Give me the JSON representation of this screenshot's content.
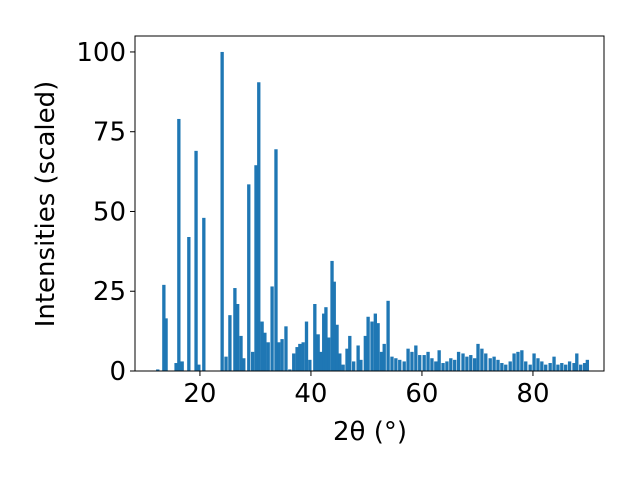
{
  "chart_data": {
    "type": "bar",
    "xlabel": "2θ (°)",
    "ylabel": "Intensities (scaled)",
    "color": "#1f77b4",
    "bar_width": 0.6,
    "x": [
      12.4,
      13.5,
      13.9,
      15.7,
      16.2,
      16.8,
      18.0,
      19.3,
      19.8,
      20.7,
      24.0,
      24.7,
      25.4,
      26.3,
      26.8,
      27.4,
      27.9,
      28.8,
      29.5,
      30.1,
      30.6,
      31.2,
      31.7,
      32.3,
      33.0,
      33.7,
      34.2,
      34.8,
      35.5,
      36.2,
      36.9,
      37.5,
      38.0,
      38.6,
      39.2,
      39.8,
      40.7,
      41.3,
      41.8,
      42.3,
      42.7,
      43.2,
      43.8,
      44.2,
      44.7,
      45.2,
      45.8,
      46.5,
      47.0,
      47.7,
      48.5,
      49.0,
      49.8,
      50.3,
      51.0,
      51.6,
      52.1,
      52.7,
      53.2,
      53.9,
      54.6,
      55.3,
      56.0,
      56.8,
      57.5,
      58.2,
      58.9,
      59.6,
      60.4,
      61.1,
      61.8,
      62.5,
      63.1,
      63.8,
      64.5,
      65.2,
      65.9,
      66.6,
      67.4,
      68.1,
      68.8,
      69.5,
      70.1,
      70.8,
      71.5,
      72.3,
      73.0,
      73.7,
      74.4,
      75.1,
      75.9,
      76.6,
      77.3,
      78.0,
      78.7,
      79.5,
      80.2,
      80.9,
      81.6,
      82.3,
      83.1,
      83.8,
      84.5,
      85.2,
      85.9,
      86.6,
      87.4,
      87.9,
      88.6,
      89.3,
      89.8
    ],
    "values": [
      0.5,
      27,
      16.5,
      2.5,
      79,
      3,
      42,
      69,
      2,
      48,
      100,
      4.5,
      17.5,
      26,
      21,
      11,
      4,
      58.5,
      6,
      64.5,
      90.5,
      15.5,
      12,
      9,
      26.5,
      69.5,
      9,
      10,
      14,
      0.5,
      5.5,
      7.5,
      8.5,
      9,
      15.5,
      3.5,
      21,
      11.5,
      6,
      18,
      20,
      10.5,
      34.5,
      28,
      14.5,
      5.5,
      2,
      7,
      11,
      3,
      8,
      3.5,
      11,
      17,
      15.5,
      18,
      15,
      6,
      8.5,
      22,
      4.5,
      4,
      3.5,
      3,
      7,
      6,
      8,
      5,
      5,
      6,
      4,
      3,
      6.5,
      2.5,
      3,
      4,
      3.5,
      6,
      5.5,
      4.5,
      5,
      4,
      8.5,
      7,
      5.5,
      4,
      4.5,
      3.5,
      2.5,
      2,
      3,
      5.5,
      6,
      6.5,
      3,
      2,
      5.5,
      4,
      3,
      2,
      2.5,
      4.5,
      2,
      2.5,
      2,
      3,
      2.5,
      5.5,
      2,
      2.5,
      3.5
    ],
    "xlim": [
      8.3,
      92.8
    ],
    "ylim": [
      0,
      105
    ],
    "xticks": [
      20,
      40,
      60,
      80
    ],
    "yticks": [
      0,
      25,
      50,
      75,
      100
    ]
  }
}
